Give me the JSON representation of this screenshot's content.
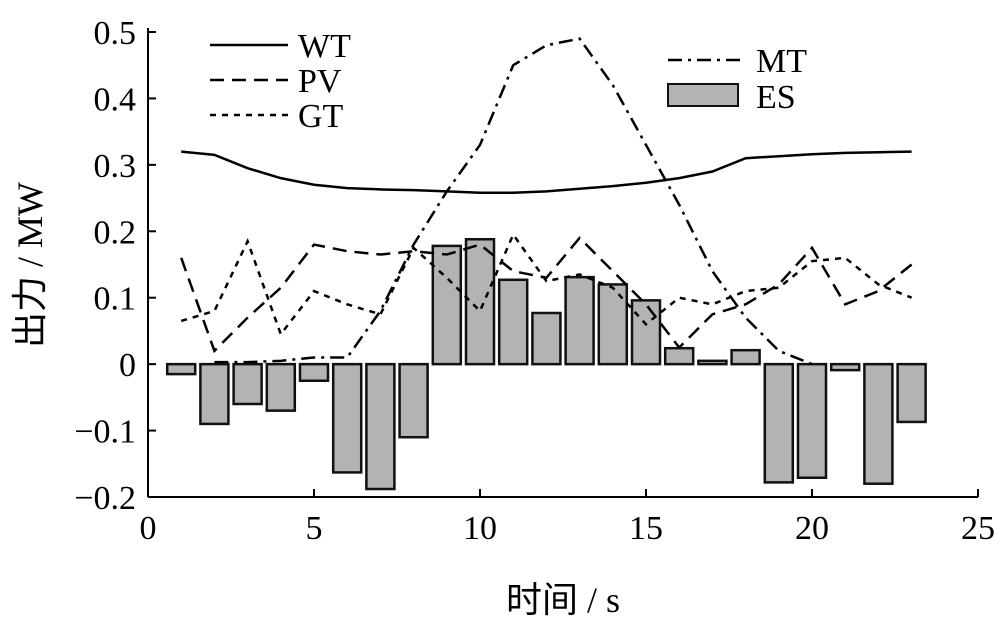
{
  "chart_data": {
    "type": "bar+line",
    "xlabel": "时间 / s",
    "ylabel": "出力 / MW",
    "xlim": [
      0,
      25
    ],
    "ylim": [
      -0.2,
      0.5
    ],
    "xticks": [
      "0",
      "5",
      "10",
      "15",
      "20",
      "25"
    ],
    "yticks": [
      "−0.2",
      "−0.1",
      "0",
      "0.1",
      "0.2",
      "0.3",
      "0.4",
      "0.5"
    ],
    "x": [
      1,
      2,
      3,
      4,
      5,
      6,
      7,
      8,
      9,
      10,
      11,
      12,
      13,
      14,
      15,
      16,
      17,
      18,
      19,
      20,
      21,
      22,
      23
    ],
    "series": [
      {
        "name": "WT",
        "style": "solid",
        "values": [
          0.32,
          0.315,
          0.295,
          0.28,
          0.27,
          0.265,
          0.263,
          0.262,
          0.26,
          0.258,
          0.258,
          0.26,
          0.264,
          0.268,
          0.273,
          0.28,
          0.29,
          0.31,
          0.313,
          0.316,
          0.318,
          0.319,
          0.32
        ]
      },
      {
        "name": "PV",
        "style": "dashed",
        "values": [
          0.16,
          0.02,
          0.07,
          0.115,
          0.18,
          0.17,
          0.165,
          0.17,
          0.165,
          0.18,
          0.14,
          0.13,
          0.19,
          0.14,
          0.09,
          0.025,
          0.075,
          0.09,
          0.12,
          0.175,
          0.09,
          0.11,
          0.15
        ]
      },
      {
        "name": "GT",
        "style": "dotted",
        "values": [
          0.065,
          0.08,
          0.185,
          0.045,
          0.11,
          0.09,
          0.075,
          0.175,
          0.13,
          0.08,
          0.195,
          0.125,
          0.135,
          0.115,
          0.06,
          0.1,
          0.09,
          0.11,
          0.115,
          0.155,
          0.16,
          0.12,
          0.1
        ]
      },
      {
        "name": "MT",
        "style": "dashdot",
        "values": [
          null,
          0.003,
          0.003,
          0.005,
          0.01,
          0.01,
          0.08,
          0.18,
          0.26,
          0.33,
          0.45,
          0.48,
          0.49,
          0.42,
          0.33,
          0.24,
          0.14,
          0.07,
          0.02,
          0.0,
          null,
          null,
          null
        ]
      },
      {
        "name": "ES",
        "style": "bar",
        "color": "#b3b3b3",
        "values": [
          -0.015,
          -0.09,
          -0.06,
          -0.07,
          -0.025,
          -0.163,
          -0.188,
          -0.11,
          0.178,
          0.188,
          0.127,
          0.077,
          0.131,
          0.12,
          0.096,
          0.024,
          0.005,
          0.021,
          -0.178,
          -0.171,
          -0.009,
          -0.18,
          -0.087
        ]
      }
    ]
  }
}
